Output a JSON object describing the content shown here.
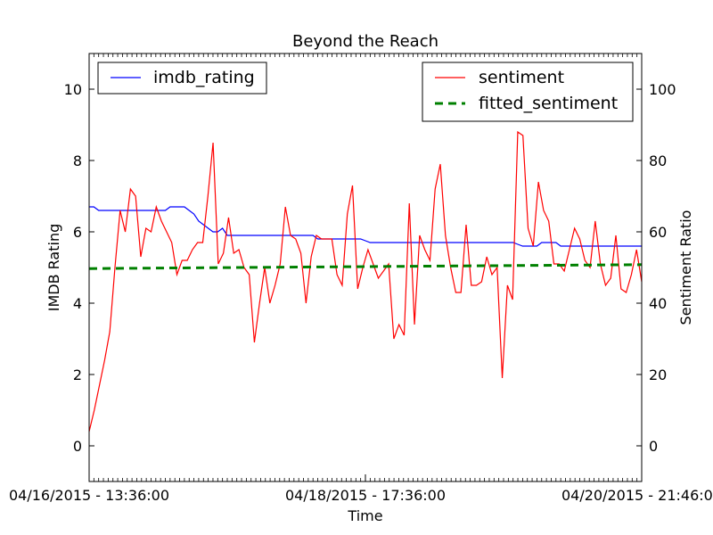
{
  "chart_data": {
    "type": "line",
    "title": "Beyond the Reach",
    "xlabel": "Time",
    "ylabel_left": "IMDB Rating",
    "ylabel_right": "Sentiment Ratio",
    "ylim_left": [
      -1,
      11
    ],
    "ylim_right": [
      -10,
      110
    ],
    "yticks_left": [
      0,
      2,
      4,
      6,
      8,
      10
    ],
    "yticks_right": [
      0,
      20,
      40,
      60,
      80,
      100
    ],
    "xticks": [
      "04/16/2015 - 13:36:00",
      "04/18/2015 - 17:36:00",
      "04/20/2015 - 21:46:00"
    ],
    "grid": false,
    "legend_left": {
      "placement": "upper-left",
      "entries": [
        "imdb_rating"
      ]
    },
    "legend_right": {
      "placement": "upper-right",
      "entries": [
        "sentiment",
        "fitted_sentiment"
      ]
    },
    "colors": {
      "imdb_rating": "#0000ff",
      "sentiment": "#ff0000",
      "fitted_sentiment": "#008000"
    },
    "series": [
      {
        "name": "imdb_rating",
        "axis": "left",
        "style": "solid",
        "values": [
          6.7,
          6.7,
          6.6,
          6.6,
          6.6,
          6.6,
          6.6,
          6.6,
          6.6,
          6.6,
          6.6,
          6.6,
          6.6,
          6.6,
          6.6,
          6.6,
          6.6,
          6.7,
          6.7,
          6.7,
          6.7,
          6.6,
          6.5,
          6.3,
          6.2,
          6.1,
          6.0,
          6.0,
          6.1,
          5.9,
          5.9,
          5.9,
          5.9,
          5.9,
          5.9,
          5.9,
          5.9,
          5.9,
          5.9,
          5.9,
          5.9,
          5.9,
          5.9,
          5.9,
          5.9,
          5.9,
          5.9,
          5.9,
          5.8,
          5.8,
          5.8,
          5.8,
          5.8,
          5.8,
          5.8,
          5.8,
          5.8,
          5.8,
          5.75,
          5.7,
          5.7,
          5.7,
          5.7,
          5.7,
          5.7,
          5.7,
          5.7,
          5.7,
          5.7,
          5.7,
          5.7,
          5.7,
          5.7,
          5.7,
          5.7,
          5.7,
          5.7,
          5.7,
          5.7,
          5.7,
          5.7,
          5.7,
          5.7,
          5.7,
          5.7,
          5.7,
          5.7,
          5.7,
          5.7,
          5.7,
          5.65,
          5.6,
          5.6,
          5.6,
          5.6,
          5.7,
          5.7,
          5.7,
          5.7,
          5.6,
          5.6,
          5.6,
          5.6,
          5.6,
          5.6,
          5.6,
          5.6,
          5.6,
          5.6,
          5.6,
          5.6,
          5.6,
          5.6,
          5.6,
          5.6,
          5.6,
          5.6
        ]
      },
      {
        "name": "sentiment",
        "axis": "right",
        "style": "solid",
        "values": [
          4,
          10,
          17,
          24,
          32,
          50,
          66,
          60,
          72,
          70,
          53,
          61,
          60,
          67,
          63,
          60,
          57,
          48,
          52,
          52,
          55,
          57,
          57,
          70,
          85,
          51,
          54,
          64,
          54,
          55,
          50,
          48,
          29,
          40,
          50,
          40,
          45,
          51,
          67,
          59,
          58,
          54,
          40,
          53,
          59,
          58,
          58,
          58,
          48,
          45,
          65,
          73,
          44,
          50,
          55,
          51,
          47,
          49,
          51,
          30,
          34,
          31,
          68,
          34,
          59,
          55,
          52,
          72,
          79,
          59,
          50,
          43,
          43,
          62,
          45,
          45,
          46,
          53,
          48,
          50,
          19,
          45,
          41,
          88,
          87,
          61,
          56,
          74,
          66,
          63,
          51,
          51,
          49,
          55,
          61,
          58,
          52,
          50,
          63,
          51,
          45,
          47,
          59,
          44,
          43,
          48,
          55,
          46
        ]
      },
      {
        "name": "fitted_sentiment",
        "axis": "right",
        "style": "dashed",
        "values": [
          49.7,
          50.8
        ]
      }
    ]
  }
}
